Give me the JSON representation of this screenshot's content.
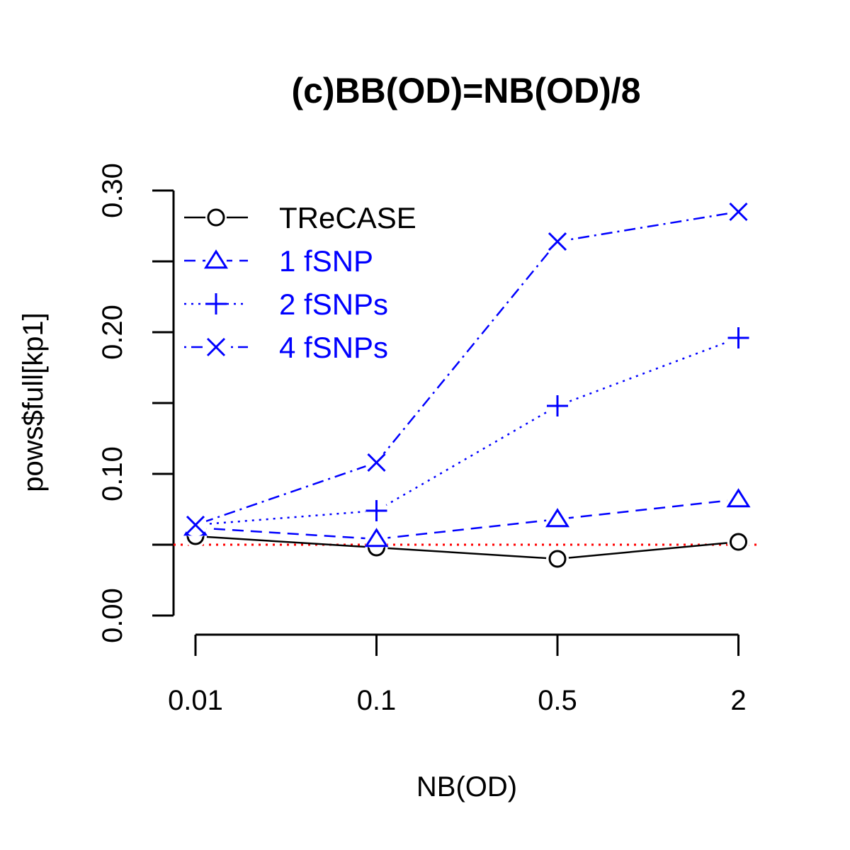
{
  "chart_data": {
    "type": "line",
    "title": "(c)BB(OD)=NB(OD)/8",
    "xlabel": "NB(OD)",
    "ylabel": "pows$full[kp1]",
    "categories": [
      "0.01",
      "0.1",
      "0.5",
      "2"
    ],
    "ylim": [
      0,
      0.3
    ],
    "yticks": [
      "0.00",
      "0.10",
      "0.20",
      "0.30"
    ],
    "ytick_values": [
      0,
      0.05,
      0.1,
      0.15,
      0.2,
      0.25,
      0.3
    ],
    "grid": false,
    "legend_position": "top-left",
    "reference_line": {
      "y": 0.05,
      "color": "#ff0000",
      "style": "dotted"
    },
    "series": [
      {
        "name": "TReCASE",
        "values": [
          0.056,
          0.048,
          0.04,
          0.052
        ],
        "color": "#000000",
        "line": "solid",
        "marker": "circle"
      },
      {
        "name": "1 fSNP",
        "values": [
          0.062,
          0.054,
          0.068,
          0.082
        ],
        "color": "#0000ff",
        "line": "dashed",
        "marker": "triangle"
      },
      {
        "name": "2 fSNPs",
        "values": [
          0.064,
          0.074,
          0.148,
          0.196
        ],
        "color": "#0000ff",
        "line": "dotted",
        "marker": "plus"
      },
      {
        "name": "4 fSNPs",
        "values": [
          0.064,
          0.108,
          0.264,
          0.285
        ],
        "color": "#0000ff",
        "line": "dotdash",
        "marker": "x"
      }
    ]
  }
}
